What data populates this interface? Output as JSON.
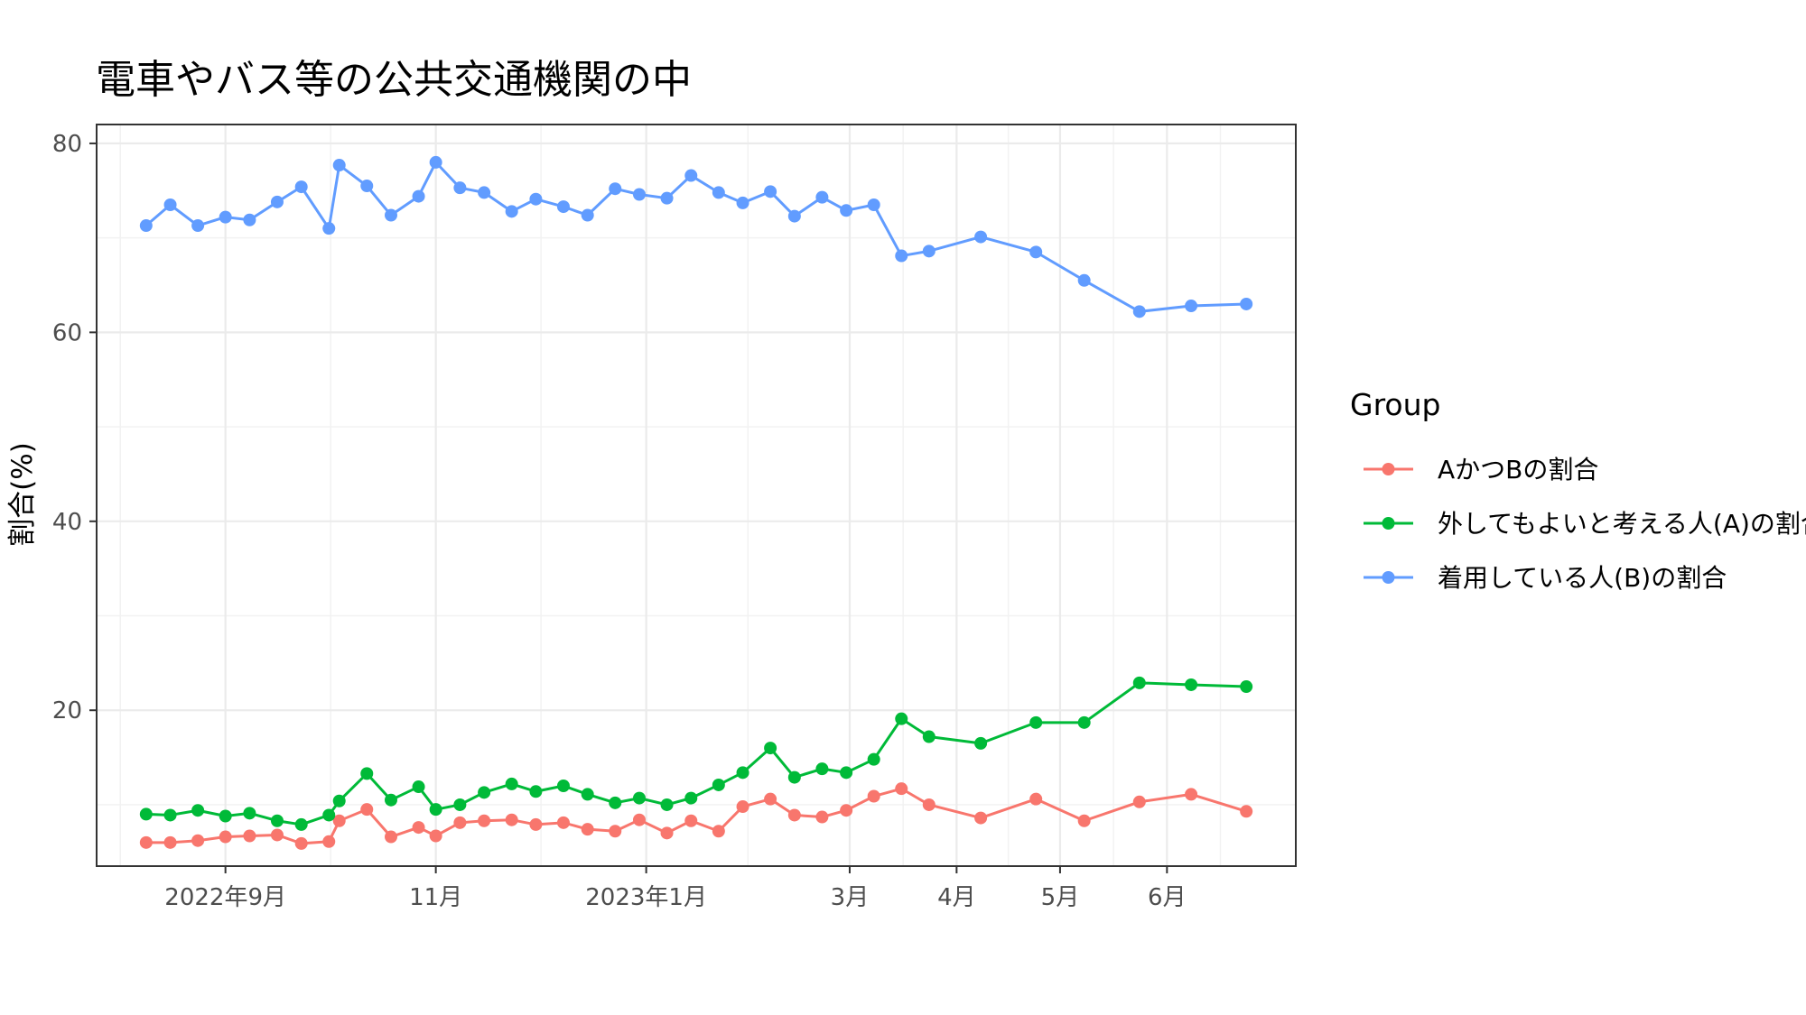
{
  "chart_data": {
    "type": "line",
    "title": "電車やバス等の公共交通機関の中",
    "xlabel": "",
    "ylabel": "割合(%)",
    "ylim": [
      3.5,
      82
    ],
    "yticks": [
      20,
      40,
      60,
      80
    ],
    "grid": true,
    "legend": {
      "title": "Group",
      "position": "right"
    },
    "x_ticks": [
      {
        "date": "2022-09-01",
        "label": "2022年9月"
      },
      {
        "date": "2022-11-01",
        "label": "11月"
      },
      {
        "date": "2023-01-01",
        "label": "2023年1月"
      },
      {
        "date": "2023-03-01",
        "label": "3月"
      },
      {
        "date": "2023-04-01",
        "label": "4月"
      },
      {
        "date": "2023-05-01",
        "label": "5月"
      },
      {
        "date": "2023-06-01",
        "label": "6月"
      }
    ],
    "x": [
      "2022-08-09",
      "2022-08-16",
      "2022-08-24",
      "2022-09-01",
      "2022-09-08",
      "2022-09-16",
      "2022-09-23",
      "2022-10-01",
      "2022-10-04",
      "2022-10-12",
      "2022-10-19",
      "2022-10-27",
      "2022-11-01",
      "2022-11-08",
      "2022-11-15",
      "2022-11-23",
      "2022-11-30",
      "2022-12-08",
      "2022-12-15",
      "2022-12-23",
      "2022-12-30",
      "2023-01-07",
      "2023-01-14",
      "2023-01-22",
      "2023-01-29",
      "2023-02-06",
      "2023-02-13",
      "2023-02-21",
      "2023-02-28",
      "2023-03-08",
      "2023-03-16",
      "2023-03-24",
      "2023-04-08",
      "2023-04-24",
      "2023-05-08",
      "2023-05-24",
      "2023-06-08",
      "2023-06-24"
    ],
    "series": [
      {
        "name": "AかつBの割合",
        "color": "#F8766D",
        "values": [
          6.0,
          6.0,
          6.2,
          6.6,
          6.7,
          6.8,
          5.9,
          6.1,
          8.3,
          9.5,
          6.6,
          7.6,
          6.7,
          8.1,
          8.3,
          8.4,
          7.9,
          8.1,
          7.4,
          7.2,
          8.4,
          7.0,
          8.3,
          7.2,
          9.8,
          10.6,
          8.9,
          8.7,
          9.4,
          10.9,
          11.7,
          10.0,
          8.6,
          10.6,
          8.3,
          10.3,
          11.1,
          9.3
        ]
      },
      {
        "name": "外してもよいと考える人(A)の割合",
        "color": "#00BA38",
        "values": [
          9.0,
          8.9,
          9.4,
          8.8,
          9.1,
          8.3,
          7.9,
          8.9,
          10.4,
          13.3,
          10.5,
          11.9,
          9.5,
          10.0,
          11.3,
          12.2,
          11.4,
          12.0,
          11.1,
          10.2,
          10.7,
          10.0,
          10.7,
          12.1,
          13.4,
          16.0,
          12.9,
          13.8,
          13.4,
          14.8,
          19.1,
          17.2,
          16.5,
          18.7,
          18.7,
          22.9,
          22.7,
          22.5
        ]
      },
      {
        "name": "着用している人(B)の割合",
        "color": "#619CFF",
        "values": [
          71.3,
          73.5,
          71.3,
          72.2,
          71.9,
          73.8,
          75.4,
          71.0,
          77.7,
          75.5,
          72.4,
          74.4,
          78.0,
          75.3,
          74.8,
          72.8,
          74.1,
          73.3,
          72.4,
          75.2,
          74.6,
          74.2,
          76.6,
          74.8,
          73.7,
          74.9,
          72.3,
          74.3,
          72.9,
          73.5,
          68.1,
          68.6,
          70.1,
          68.5,
          65.5,
          62.2,
          62.8,
          63.0
        ]
      }
    ]
  }
}
